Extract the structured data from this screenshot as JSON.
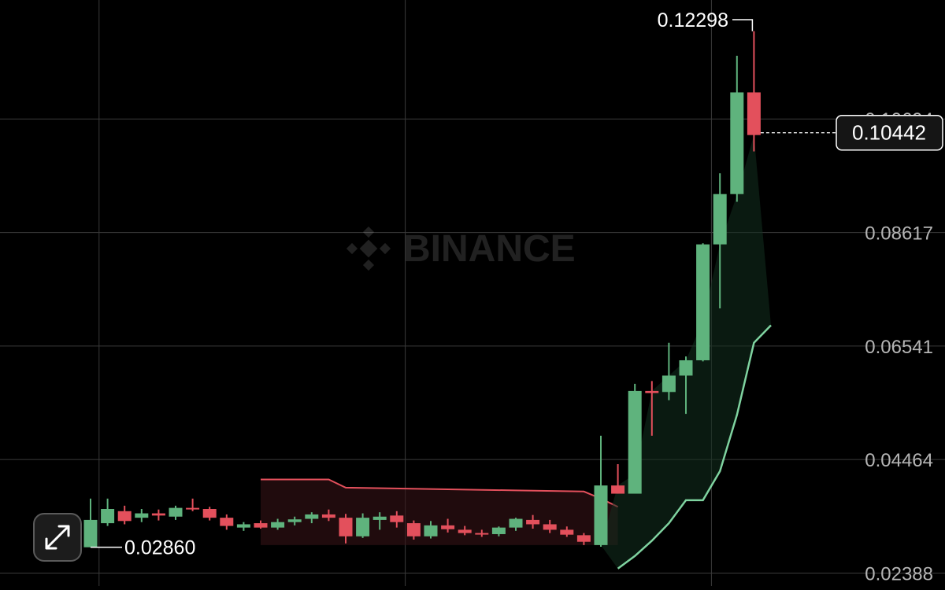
{
  "watermark": "BINANCE",
  "colors": {
    "up": "#5fb37d",
    "down": "#e3505c",
    "grid": "#3a3a3a",
    "axis_text": "#b5b5b5",
    "price_label_border": "#ffffff",
    "support_line": "#7fd3a0",
    "resistance_line": "#e3505c"
  },
  "icons": {
    "expand": "expand-diagonal-arrows-icon",
    "watermark": "binance-diamond-logo-icon"
  },
  "chart_data": {
    "type": "candlestick",
    "ylim": [
      0.0215,
      0.1287
    ],
    "y_ticks": [
      "0.10694",
      "0.08617",
      "0.06541",
      "0.04464",
      "0.02388"
    ],
    "x_grid_candles": [
      0.5,
      18.5,
      36.5,
      54.5
    ],
    "current_price": "0.10442",
    "high_label": "0.12298",
    "low_label": "0.02860",
    "candles": [
      {
        "o": 0.0286,
        "h": 0.0375,
        "l": 0.0286,
        "c": 0.0336
      },
      {
        "o": 0.033,
        "h": 0.0375,
        "l": 0.0325,
        "c": 0.0356
      },
      {
        "o": 0.0352,
        "h": 0.0362,
        "l": 0.0328,
        "c": 0.0334
      },
      {
        "o": 0.034,
        "h": 0.0356,
        "l": 0.0332,
        "c": 0.0348
      },
      {
        "o": 0.0348,
        "h": 0.0355,
        "l": 0.0335,
        "c": 0.0344
      },
      {
        "o": 0.0342,
        "h": 0.0362,
        "l": 0.0336,
        "c": 0.0358
      },
      {
        "o": 0.0358,
        "h": 0.0375,
        "l": 0.0352,
        "c": 0.0356
      },
      {
        "o": 0.0356,
        "h": 0.036,
        "l": 0.0335,
        "c": 0.034
      },
      {
        "o": 0.034,
        "h": 0.0346,
        "l": 0.0318,
        "c": 0.0325
      },
      {
        "o": 0.0322,
        "h": 0.0332,
        "l": 0.0316,
        "c": 0.0328
      },
      {
        "o": 0.033,
        "h": 0.0335,
        "l": 0.032,
        "c": 0.0322
      },
      {
        "o": 0.0322,
        "h": 0.0338,
        "l": 0.0318,
        "c": 0.0332
      },
      {
        "o": 0.0332,
        "h": 0.0342,
        "l": 0.0326,
        "c": 0.0337
      },
      {
        "o": 0.0338,
        "h": 0.035,
        "l": 0.033,
        "c": 0.0346
      },
      {
        "o": 0.0346,
        "h": 0.0355,
        "l": 0.0334,
        "c": 0.034
      },
      {
        "o": 0.034,
        "h": 0.0347,
        "l": 0.0293,
        "c": 0.0306
      },
      {
        "o": 0.0306,
        "h": 0.0348,
        "l": 0.0303,
        "c": 0.034
      },
      {
        "o": 0.0336,
        "h": 0.035,
        "l": 0.0318,
        "c": 0.0342
      },
      {
        "o": 0.0344,
        "h": 0.0352,
        "l": 0.0322,
        "c": 0.0332
      },
      {
        "o": 0.033,
        "h": 0.0335,
        "l": 0.03,
        "c": 0.0306
      },
      {
        "o": 0.0306,
        "h": 0.0334,
        "l": 0.0302,
        "c": 0.0326
      },
      {
        "o": 0.0326,
        "h": 0.0338,
        "l": 0.0313,
        "c": 0.0319
      },
      {
        "o": 0.0318,
        "h": 0.0325,
        "l": 0.0308,
        "c": 0.0312
      },
      {
        "o": 0.0312,
        "h": 0.0318,
        "l": 0.0305,
        "c": 0.031
      },
      {
        "o": 0.031,
        "h": 0.0324,
        "l": 0.0306,
        "c": 0.0322
      },
      {
        "o": 0.0322,
        "h": 0.034,
        "l": 0.0316,
        "c": 0.0338
      },
      {
        "o": 0.0336,
        "h": 0.0345,
        "l": 0.032,
        "c": 0.0328
      },
      {
        "o": 0.0328,
        "h": 0.0336,
        "l": 0.0312,
        "c": 0.0318
      },
      {
        "o": 0.0318,
        "h": 0.0324,
        "l": 0.0305,
        "c": 0.0309
      },
      {
        "o": 0.0308,
        "h": 0.0312,
        "l": 0.029,
        "c": 0.0296
      },
      {
        "o": 0.029,
        "h": 0.049,
        "l": 0.0287,
        "c": 0.0399
      },
      {
        "o": 0.0399,
        "h": 0.0438,
        "l": 0.0384,
        "c": 0.0384
      },
      {
        "o": 0.0384,
        "h": 0.0585,
        "l": 0.0384,
        "c": 0.0572
      },
      {
        "o": 0.0572,
        "h": 0.059,
        "l": 0.049,
        "c": 0.0568
      },
      {
        "o": 0.057,
        "h": 0.066,
        "l": 0.0555,
        "c": 0.06
      },
      {
        "o": 0.06,
        "h": 0.0635,
        "l": 0.053,
        "c": 0.0628
      },
      {
        "o": 0.0628,
        "h": 0.0842,
        "l": 0.0626,
        "c": 0.084
      },
      {
        "o": 0.084,
        "h": 0.097,
        "l": 0.0723,
        "c": 0.0932
      },
      {
        "o": 0.0932,
        "h": 0.1185,
        "l": 0.0918,
        "c": 0.1118
      },
      {
        "o": 0.1118,
        "h": 0.123,
        "l": 0.101,
        "c": 0.104
      }
    ],
    "support_line": [
      [
        31,
        0.0247
      ],
      [
        32,
        0.027
      ],
      [
        33,
        0.0298
      ],
      [
        34,
        0.033
      ],
      [
        35,
        0.0372
      ],
      [
        36,
        0.0372
      ],
      [
        37,
        0.0425
      ],
      [
        38,
        0.0528
      ],
      [
        39,
        0.066
      ],
      [
        40,
        0.0692
      ]
    ],
    "resistance_line": [
      [
        10,
        0.041
      ],
      [
        14,
        0.041
      ],
      [
        15,
        0.0395
      ],
      [
        25,
        0.039
      ],
      [
        29,
        0.0388
      ],
      [
        30,
        0.0375
      ],
      [
        31,
        0.036
      ]
    ]
  }
}
